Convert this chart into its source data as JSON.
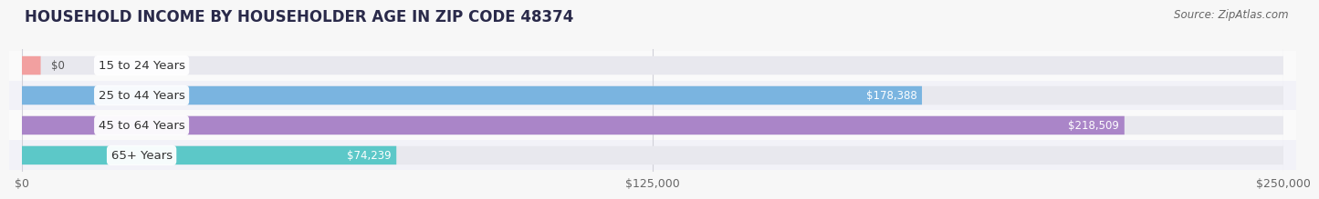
{
  "title": "HOUSEHOLD INCOME BY HOUSEHOLDER AGE IN ZIP CODE 48374",
  "source": "Source: ZipAtlas.com",
  "categories": [
    "15 to 24 Years",
    "25 to 44 Years",
    "45 to 64 Years",
    "65+ Years"
  ],
  "values": [
    0,
    178388,
    218509,
    74239
  ],
  "bar_colors": [
    "#f2a0a0",
    "#7ab4e0",
    "#aa85c8",
    "#5cc8c8"
  ],
  "track_color": "#e8e8ee",
  "bar_height": 0.62,
  "xlim": [
    0,
    250000
  ],
  "xticks": [
    0,
    125000,
    250000
  ],
  "xtick_labels": [
    "$0",
    "$125,000",
    "$250,000"
  ],
  "value_labels": [
    "$0",
    "$178,388",
    "$218,509",
    "$74,239"
  ],
  "background_color": "#f7f7f7",
  "title_fontsize": 12,
  "source_fontsize": 8.5,
  "label_fontsize": 9.5,
  "tick_fontsize": 9,
  "value_fontsize": 8.5,
  "grid_color": "#d0d0d8",
  "row_bg_colors": [
    "#fafafa",
    "#f2f2f8",
    "#fafafa",
    "#f2f2f8"
  ]
}
